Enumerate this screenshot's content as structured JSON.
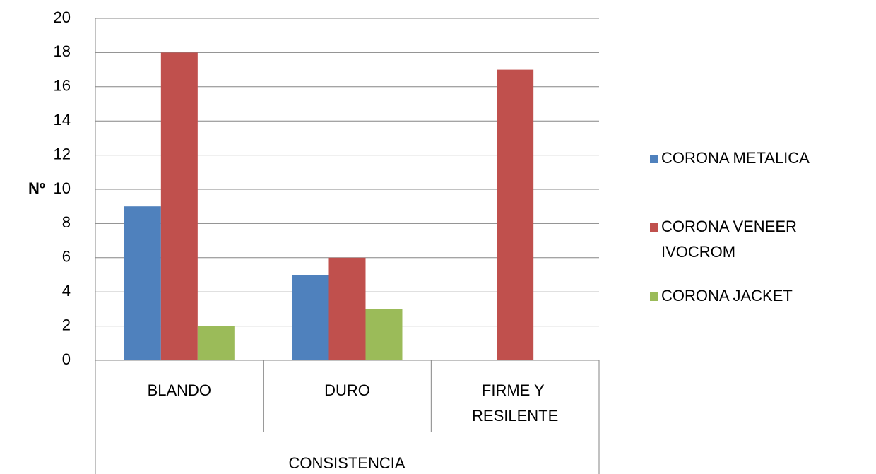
{
  "chart_data": {
    "type": "bar",
    "categories": [
      "BLANDO",
      "DURO",
      "FIRME Y RESILENTE"
    ],
    "series": [
      {
        "name": "CORONA METALICA",
        "color": "#4f81bd",
        "values": [
          9,
          5,
          0
        ]
      },
      {
        "name": "CORONA VENEER IVOCROM",
        "color": "#c0504d",
        "values": [
          18,
          6,
          17
        ]
      },
      {
        "name": "CORONA JACKET",
        "color": "#9bbb59",
        "values": [
          2,
          3,
          0
        ]
      }
    ],
    "y_label": "Nº",
    "x_label": "CONSISTENCIA",
    "ylim": [
      0,
      20
    ],
    "yticks": [
      0,
      2,
      4,
      6,
      8,
      10,
      12,
      14,
      16,
      18,
      20
    ],
    "grid": true,
    "legend": "right"
  }
}
